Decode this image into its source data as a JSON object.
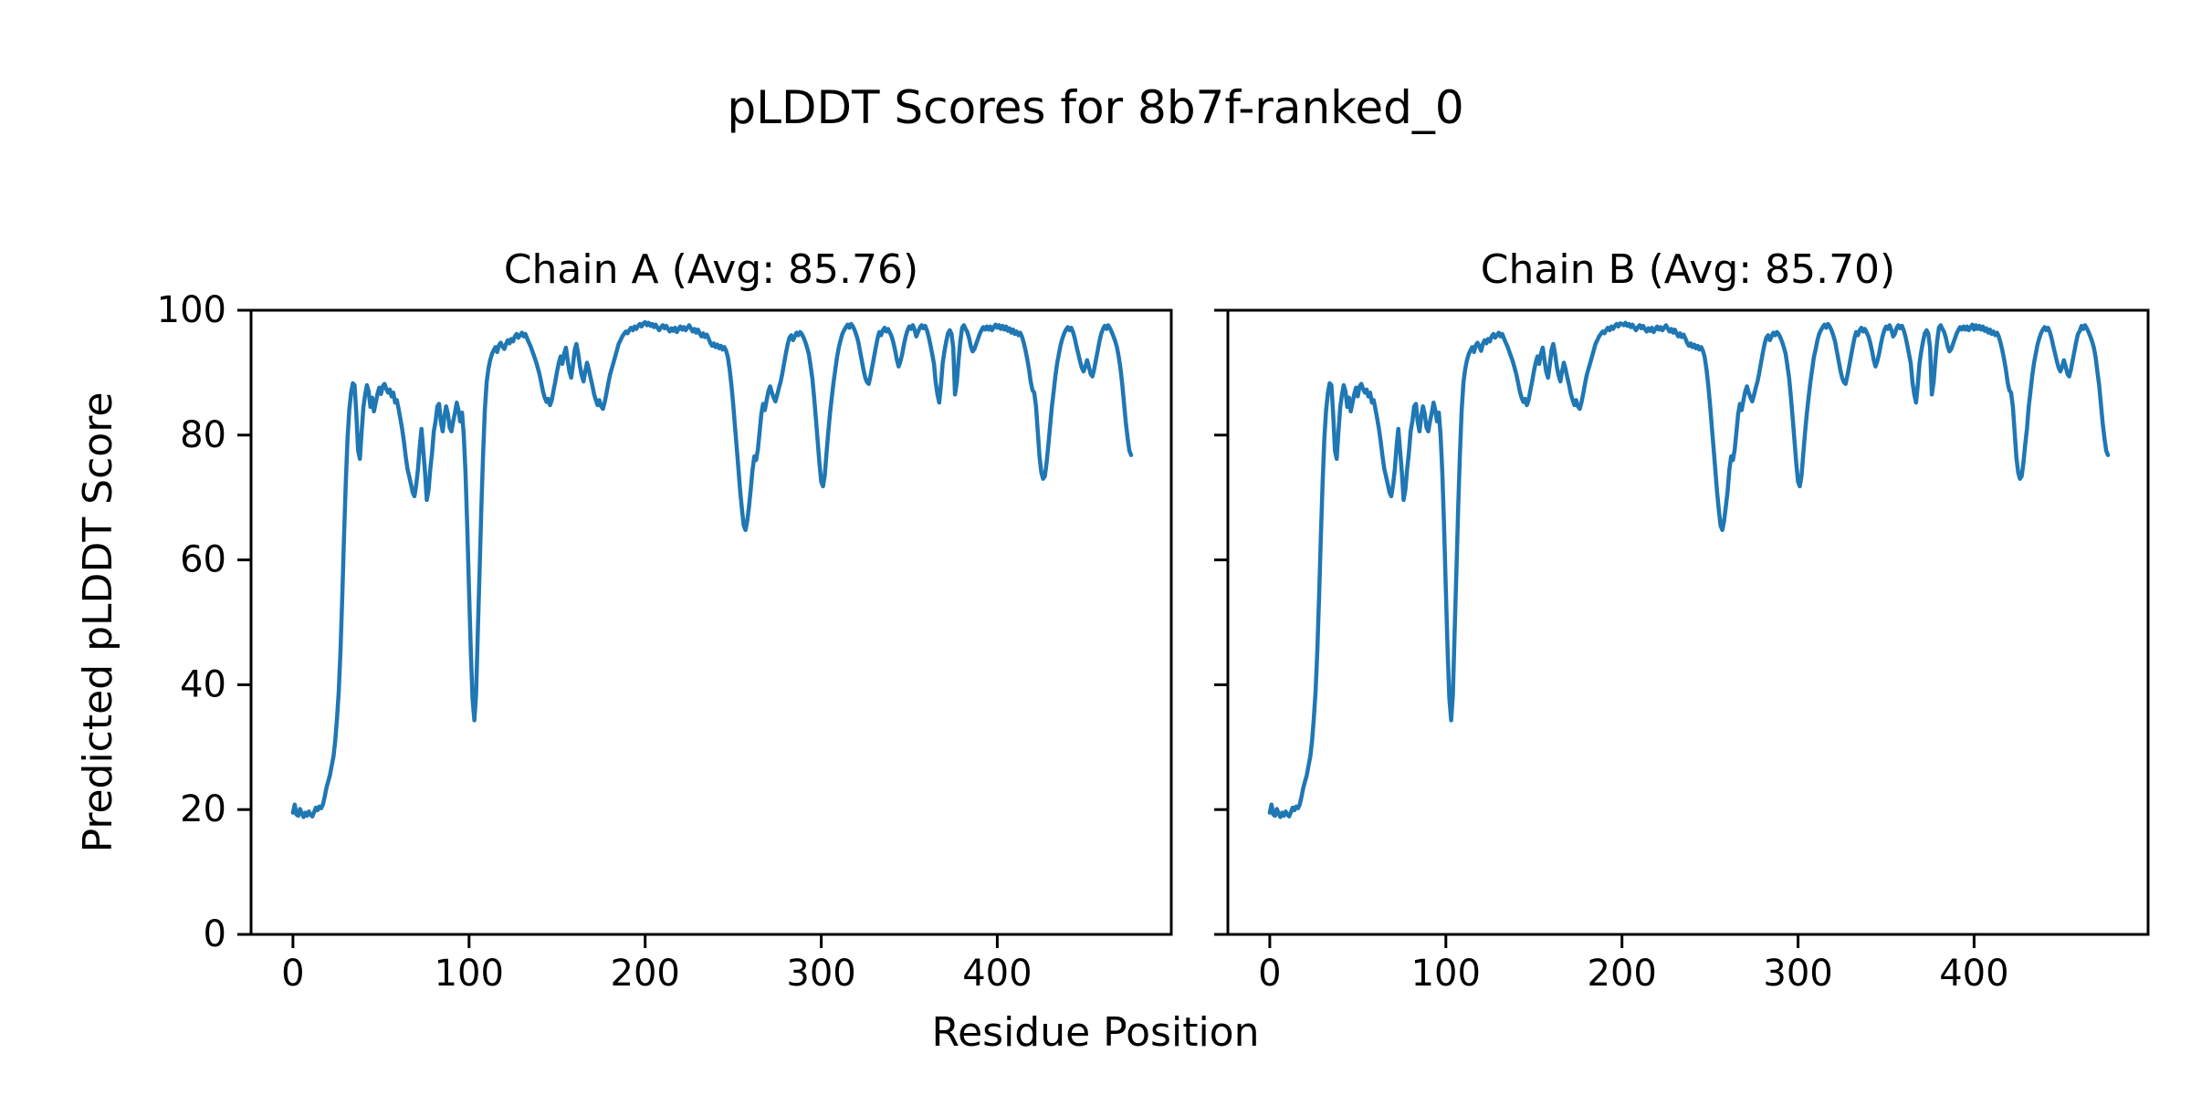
{
  "figure": {
    "suptitle": "pLDDT Scores for 8b7f-ranked_0",
    "xlabel": "Residue Position",
    "ylabel": "Predicted pLDDT Score",
    "line_color": "#1f77b4",
    "axis_color": "#000000",
    "background": "#ffffff"
  },
  "chart_data": [
    {
      "type": "line",
      "title": "Chain A (Avg: 85.76)",
      "avg": 85.76,
      "xlabel": "Residue Position",
      "ylabel": "Predicted pLDDT Score",
      "xlim": [
        -23.8,
        498.8
      ],
      "ylim": [
        0,
        100
      ],
      "xticks": [
        0,
        100,
        200,
        300,
        400
      ],
      "yticks": [
        0,
        20,
        40,
        60,
        80,
        100
      ],
      "grid": false,
      "show_ytick_labels": true,
      "legend": "none",
      "series": [
        {
          "name": "Chain A",
          "color": "#1f77b4",
          "x_start": 0,
          "x_step": 1,
          "values": [
            19.5,
            20.8,
            19.2,
            19.0,
            20.1,
            19.4,
            18.8,
            19.5,
            19.0,
            19.7,
            19.2,
            18.9,
            19.6,
            20.3,
            19.9,
            20.5,
            20.2,
            20.8,
            22.0,
            23.5,
            24.5,
            25.5,
            27.0,
            28.5,
            31.0,
            34.5,
            39.0,
            45.5,
            54.0,
            63.5,
            72.5,
            79.5,
            84.0,
            86.8,
            88.3,
            88.0,
            83.5,
            77.5,
            76.2,
            80.5,
            84.5,
            86.5,
            88.0,
            87.0,
            84.5,
            86.0,
            83.8,
            85.2,
            86.6,
            87.6,
            86.6,
            87.8,
            88.2,
            87.4,
            86.8,
            87.3,
            86.2,
            86.8,
            85.2,
            85.6,
            84.2,
            82.6,
            81.0,
            79.0,
            76.6,
            74.6,
            73.4,
            72.2,
            70.8,
            70.2,
            72.0,
            74.6,
            78.2,
            81.0,
            77.6,
            74.0,
            69.6,
            71.2,
            74.6,
            77.2,
            80.6,
            82.2,
            84.6,
            85.0,
            82.2,
            80.6,
            83.0,
            84.6,
            83.4,
            81.2,
            80.6,
            82.2,
            83.6,
            85.2,
            84.0,
            82.2,
            83.6,
            80.0,
            74.0,
            65.0,
            55.0,
            45.5,
            37.8,
            34.3,
            38.5,
            48.5,
            58.5,
            68.5,
            77.0,
            84.0,
            88.5,
            90.6,
            92.0,
            93.0,
            93.6,
            94.1,
            93.3,
            94.4,
            94.8,
            94.2,
            93.8,
            94.6,
            95.2,
            94.7,
            95.4,
            95.0,
            95.8,
            96.2,
            95.6,
            96.0,
            96.4,
            95.8,
            96.2,
            95.5,
            94.8,
            94.2,
            93.4,
            92.6,
            91.8,
            90.8,
            89.8,
            88.4,
            87.0,
            86.0,
            85.3,
            85.8,
            84.8,
            85.6,
            87.2,
            88.6,
            90.2,
            91.6,
            92.6,
            91.4,
            93.0,
            94.0,
            92.0,
            90.2,
            89.2,
            91.2,
            93.6,
            94.6,
            93.0,
            91.0,
            89.6,
            88.6,
            90.2,
            91.6,
            90.6,
            89.2,
            88.0,
            86.6,
            85.6,
            84.8,
            85.6,
            84.6,
            84.2,
            85.2,
            86.6,
            88.2,
            89.6,
            90.6,
            91.6,
            92.6,
            93.6,
            94.6,
            95.2,
            95.8,
            96.2,
            96.6,
            96.3,
            96.8,
            97.2,
            96.8,
            97.4,
            97.0,
            97.5,
            97.8,
            97.4,
            97.9,
            98.1,
            97.6,
            98.0,
            97.5,
            97.8,
            97.3,
            97.7,
            97.2,
            96.8,
            97.3,
            97.6,
            97.1,
            97.5,
            97.0,
            96.6,
            97.1,
            96.7,
            97.2,
            96.5,
            97.0,
            97.4,
            96.9,
            97.3,
            96.8,
            97.2,
            97.6,
            97.1,
            96.6,
            97.0,
            96.4,
            96.9,
            96.3,
            95.8,
            96.3,
            95.7,
            96.1,
            95.5,
            94.8,
            94.3,
            94.7,
            94.1,
            94.5,
            93.9,
            94.3,
            93.7,
            94.1,
            93.5,
            92.5,
            90.5,
            88.0,
            85.0,
            81.5,
            78.0,
            74.5,
            71.0,
            68.0,
            65.5,
            64.8,
            66.2,
            68.6,
            71.4,
            74.4,
            76.6,
            76.0,
            77.6,
            80.4,
            83.4,
            85.0,
            84.0,
            85.6,
            87.0,
            87.8,
            86.8,
            86.0,
            85.4,
            86.4,
            87.6,
            88.6,
            90.0,
            91.6,
            93.2,
            94.6,
            95.6,
            96.0,
            95.2,
            95.8,
            96.4,
            96.0,
            96.5,
            96.2,
            95.6,
            94.9,
            94.0,
            93.0,
            91.0,
            89.0,
            86.0,
            82.5,
            79.0,
            75.5,
            72.5,
            71.8,
            73.5,
            77.0,
            80.5,
            83.5,
            86.0,
            88.5,
            90.5,
            92.5,
            94.0,
            95.2,
            96.2,
            96.8,
            97.3,
            97.7,
            97.2,
            97.8,
            97.4,
            96.8,
            96.0,
            95.0,
            93.5,
            92.0,
            90.5,
            89.2,
            88.5,
            88.2,
            89.5,
            91.0,
            92.5,
            94.0,
            95.5,
            96.5,
            96.0,
            96.8,
            97.2,
            96.6,
            97.0,
            96.4,
            95.8,
            94.8,
            93.5,
            92.0,
            91.0,
            91.8,
            93.0,
            94.5,
            95.8,
            96.8,
            97.4,
            97.0,
            97.6,
            96.9,
            95.8,
            96.5,
            97.2,
            97.6,
            97.1,
            97.5,
            96.8,
            95.8,
            94.5,
            93.0,
            91.5,
            88.5,
            86.5,
            85.2,
            88.0,
            91.5,
            93.5,
            95.0,
            96.3,
            96.8,
            96.2,
            94.0,
            86.5,
            88.5,
            92.0,
            95.0,
            97.2,
            97.6,
            97.0,
            96.5,
            95.5,
            94.2,
            93.4,
            93.8,
            94.6,
            95.4,
            96.2,
            96.8,
            97.3,
            96.9,
            97.4,
            96.9,
            97.4,
            96.8,
            97.3,
            97.7,
            97.2,
            97.6,
            97.0,
            97.5,
            96.9,
            97.4,
            96.7,
            97.1,
            96.4,
            96.9,
            96.2,
            96.6,
            96.0,
            96.4,
            95.8,
            94.8,
            93.6,
            92.2,
            90.5,
            88.5,
            87.2,
            86.8,
            84.5,
            80.5,
            76.5,
            74.0,
            73.0,
            73.4,
            75.5,
            78.5,
            81.5,
            84.5,
            87.0,
            89.5,
            91.5,
            93.0,
            94.5,
            95.5,
            96.3,
            96.9,
            97.3,
            96.8,
            97.2,
            96.5,
            95.5,
            94.2,
            93.0,
            91.8,
            90.8,
            90.2,
            91.0,
            92.0,
            91.0,
            89.8,
            89.4,
            90.5,
            92.0,
            93.5,
            95.0,
            96.2,
            97.0,
            97.5,
            97.0,
            97.6,
            97.1,
            96.5,
            95.8,
            95.0,
            94.0,
            92.5,
            90.5,
            88.0,
            85.0,
            82.0,
            79.5,
            77.5,
            76.8
          ]
        }
      ]
    },
    {
      "type": "line",
      "title": "Chain B (Avg: 85.70)",
      "avg": 85.7,
      "xlabel": "Residue Position",
      "ylabel": "Predicted pLDDT Score",
      "xlim": [
        -23.8,
        498.8
      ],
      "ylim": [
        0,
        100
      ],
      "xticks": [
        0,
        100,
        200,
        300,
        400
      ],
      "yticks": [
        0,
        20,
        40,
        60,
        80,
        100
      ],
      "grid": false,
      "show_ytick_labels": false,
      "legend": "none",
      "series": [
        {
          "name": "Chain B",
          "color": "#1f77b4",
          "x_start": 0,
          "x_step": 1,
          "values": [
            19.5,
            20.8,
            19.2,
            19.0,
            20.1,
            19.4,
            18.8,
            19.5,
            19.0,
            19.7,
            19.2,
            18.9,
            19.6,
            20.3,
            19.9,
            20.5,
            20.2,
            20.8,
            22.0,
            23.5,
            24.5,
            25.5,
            27.0,
            28.5,
            31.0,
            34.5,
            39.0,
            45.5,
            54.0,
            63.5,
            72.5,
            79.5,
            84.0,
            86.8,
            88.3,
            88.0,
            83.5,
            77.5,
            76.2,
            80.5,
            84.5,
            86.5,
            88.0,
            87.0,
            84.5,
            86.0,
            83.8,
            85.2,
            86.6,
            87.6,
            86.2,
            87.8,
            88.2,
            87.4,
            86.8,
            87.3,
            86.2,
            86.8,
            85.2,
            85.6,
            84.2,
            82.6,
            81.0,
            79.0,
            76.6,
            74.6,
            73.4,
            72.2,
            70.8,
            70.2,
            72.0,
            74.6,
            78.2,
            81.0,
            77.6,
            74.0,
            69.6,
            71.2,
            74.6,
            77.2,
            80.6,
            82.2,
            84.6,
            85.0,
            82.2,
            80.6,
            83.0,
            84.6,
            83.4,
            81.2,
            80.6,
            82.2,
            83.6,
            85.2,
            84.0,
            82.2,
            83.6,
            80.0,
            74.0,
            65.0,
            55.0,
            45.5,
            37.8,
            34.3,
            38.5,
            48.5,
            58.5,
            68.5,
            77.0,
            84.0,
            88.5,
            90.6,
            92.0,
            93.0,
            93.6,
            94.1,
            93.3,
            94.4,
            94.8,
            94.2,
            93.5,
            94.6,
            95.2,
            94.7,
            95.4,
            95.0,
            95.8,
            96.2,
            95.6,
            96.0,
            96.4,
            95.8,
            96.2,
            95.5,
            94.8,
            94.2,
            93.4,
            92.6,
            91.8,
            90.8,
            89.8,
            88.4,
            87.0,
            86.0,
            85.3,
            85.8,
            84.8,
            85.6,
            87.2,
            88.6,
            90.2,
            91.6,
            92.6,
            91.4,
            93.0,
            94.0,
            92.0,
            90.2,
            89.2,
            91.2,
            93.6,
            94.6,
            93.0,
            91.0,
            89.6,
            88.6,
            90.2,
            91.6,
            90.6,
            89.2,
            88.0,
            86.6,
            85.6,
            84.8,
            85.6,
            84.6,
            84.2,
            85.2,
            86.6,
            88.2,
            89.6,
            90.6,
            91.6,
            92.6,
            93.6,
            94.6,
            95.2,
            95.8,
            96.2,
            96.6,
            96.3,
            96.8,
            97.2,
            96.8,
            97.4,
            97.0,
            97.5,
            97.8,
            97.4,
            97.9,
            97.8,
            97.6,
            98.0,
            97.5,
            97.8,
            97.3,
            97.7,
            97.2,
            96.8,
            97.3,
            97.6,
            97.1,
            97.5,
            97.0,
            96.6,
            97.1,
            96.7,
            97.2,
            96.5,
            97.0,
            97.4,
            96.9,
            97.3,
            96.8,
            97.2,
            97.6,
            97.1,
            96.6,
            97.0,
            96.4,
            96.9,
            96.3,
            95.8,
            96.3,
            95.7,
            96.1,
            95.5,
            94.8,
            94.3,
            94.7,
            94.1,
            94.5,
            93.9,
            94.3,
            93.7,
            94.1,
            93.5,
            92.5,
            90.5,
            88.0,
            85.0,
            81.5,
            78.0,
            74.5,
            71.0,
            68.0,
            65.5,
            64.8,
            66.2,
            68.6,
            71.0,
            74.4,
            76.6,
            76.0,
            77.6,
            80.4,
            83.4,
            85.0,
            84.0,
            85.6,
            87.0,
            87.8,
            86.8,
            86.0,
            85.4,
            86.4,
            87.6,
            88.6,
            90.0,
            91.6,
            93.2,
            94.6,
            95.6,
            96.0,
            95.2,
            95.8,
            96.4,
            96.0,
            96.5,
            96.2,
            95.6,
            94.9,
            94.0,
            93.0,
            91.0,
            89.0,
            86.0,
            82.5,
            79.0,
            75.5,
            72.5,
            71.8,
            73.5,
            77.0,
            80.5,
            83.5,
            86.0,
            88.5,
            90.5,
            92.5,
            93.7,
            95.2,
            96.2,
            96.8,
            97.3,
            97.7,
            97.2,
            97.8,
            97.4,
            96.8,
            96.0,
            95.0,
            93.5,
            92.0,
            90.5,
            89.2,
            88.5,
            88.2,
            89.5,
            91.0,
            92.5,
            94.0,
            95.5,
            96.5,
            96.0,
            96.8,
            97.2,
            96.6,
            97.0,
            96.4,
            95.8,
            94.8,
            93.5,
            92.0,
            91.0,
            91.8,
            93.0,
            94.5,
            95.8,
            96.8,
            97.4,
            97.0,
            97.6,
            96.9,
            95.8,
            96.2,
            97.2,
            97.6,
            97.1,
            97.5,
            96.8,
            95.8,
            94.5,
            93.0,
            91.5,
            88.5,
            86.5,
            85.2,
            88.0,
            91.5,
            93.5,
            95.0,
            96.3,
            96.8,
            96.2,
            94.0,
            86.5,
            88.5,
            92.0,
            95.0,
            97.2,
            97.6,
            97.0,
            96.5,
            95.5,
            94.2,
            93.4,
            93.8,
            94.6,
            95.4,
            96.2,
            96.8,
            97.3,
            96.9,
            97.4,
            96.9,
            97.4,
            96.8,
            97.3,
            97.7,
            96.9,
            97.6,
            97.0,
            97.5,
            96.9,
            97.4,
            96.7,
            97.1,
            96.4,
            96.9,
            96.2,
            96.6,
            96.0,
            96.4,
            95.8,
            94.8,
            93.6,
            92.2,
            90.5,
            88.5,
            87.2,
            86.8,
            84.5,
            80.5,
            76.5,
            74.0,
            73.0,
            73.4,
            75.5,
            78.5,
            81.0,
            84.5,
            87.0,
            89.5,
            91.5,
            93.0,
            94.5,
            95.5,
            96.3,
            96.9,
            97.3,
            96.8,
            97.2,
            96.5,
            95.5,
            94.2,
            93.0,
            91.8,
            90.8,
            90.2,
            91.0,
            92.0,
            91.0,
            89.8,
            89.4,
            90.5,
            92.0,
            93.5,
            95.0,
            96.2,
            96.7,
            97.5,
            97.0,
            97.6,
            97.1,
            96.5,
            95.8,
            95.0,
            94.0,
            92.5,
            90.1,
            88.0,
            85.0,
            82.0,
            79.5,
            77.5,
            76.8
          ]
        }
      ]
    }
  ]
}
